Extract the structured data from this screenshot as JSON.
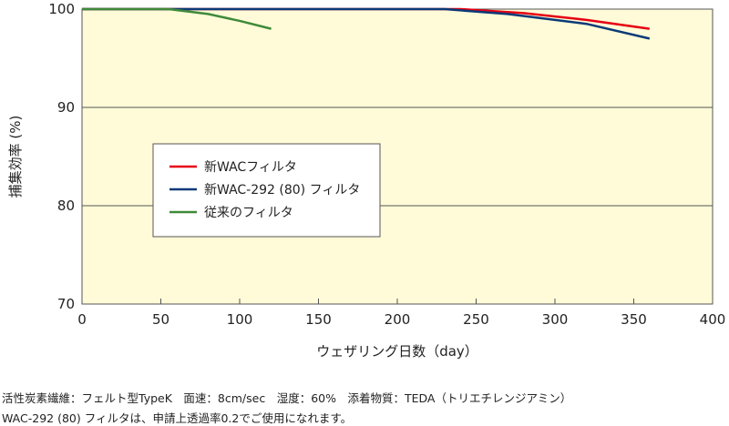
{
  "chart_data": {
    "type": "line",
    "xlabel": "ウェザリング日数（day）",
    "ylabel": "捕集効率 (%)",
    "xlim": [
      0,
      400
    ],
    "ylim": [
      70,
      100
    ],
    "xticks": [
      "0",
      "50",
      "100",
      "150",
      "200",
      "250",
      "300",
      "350",
      "400"
    ],
    "yticks": [
      "70",
      "80",
      "90",
      "100"
    ],
    "grid": "horizontal",
    "background": "#fffbd8",
    "legend_placement": "center-left",
    "series": [
      {
        "name": "新WACフィルタ",
        "color": "#e60012",
        "x": [
          0,
          240,
          280,
          320,
          360
        ],
        "y": [
          100,
          100,
          99.6,
          98.9,
          98.0
        ]
      },
      {
        "name": "新WAC-292 (80) フィルタ",
        "color": "#0a3a78",
        "x": [
          0,
          230,
          270,
          320,
          360
        ],
        "y": [
          100,
          100,
          99.5,
          98.5,
          97.0
        ]
      },
      {
        "name": "従来のフィルタ",
        "color": "#3f8a3a",
        "x": [
          0,
          55,
          80,
          100,
          120
        ],
        "y": [
          100,
          100,
          99.5,
          98.8,
          98.0
        ]
      }
    ]
  },
  "notes": [
    "活性炭素繊維：フェルト型TypeK　面速：8cm/sec　湿度：60%　添着物質：TEDA（トリエチレンジアミン）",
    "WAC-292 (80) フィルタは、申請上透過率0.2でご使用になれます。"
  ]
}
